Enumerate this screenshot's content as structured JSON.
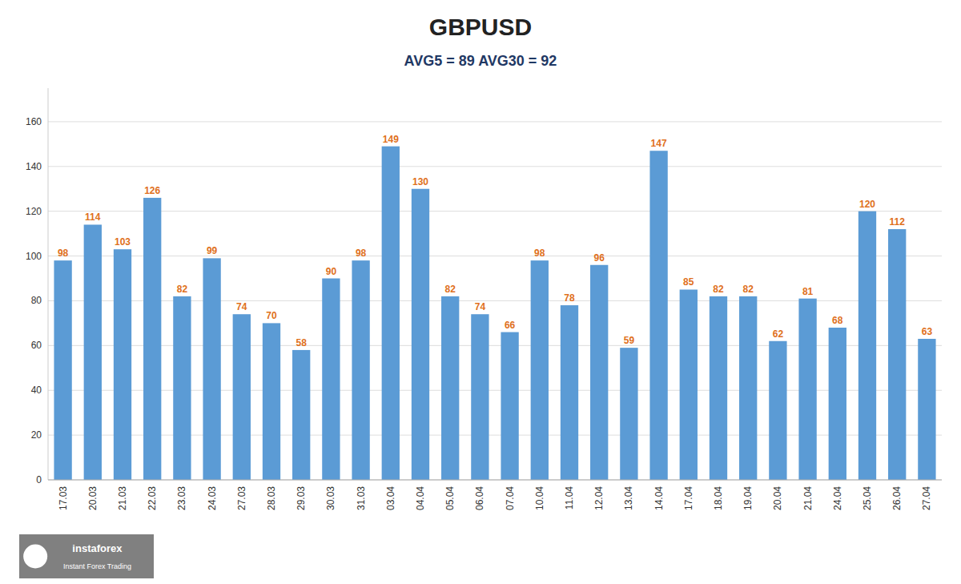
{
  "chart_data": {
    "type": "bar",
    "title": "GBPUSD",
    "subtitle": "AVG5 = 89 AVG30 = 92",
    "categories": [
      "17.03",
      "20.03",
      "21.03",
      "22.03",
      "23.03",
      "24.03",
      "27.03",
      "28.03",
      "29.03",
      "30.03",
      "31.03",
      "03.04",
      "04.04",
      "05.04",
      "06.04",
      "07.04",
      "10.04",
      "11.04",
      "12.04",
      "13.04",
      "14.04",
      "17.04",
      "18.04",
      "19.04",
      "20.04",
      "21.04",
      "24.04",
      "25.04",
      "26.04",
      "27.04"
    ],
    "values": [
      98,
      114,
      103,
      126,
      82,
      99,
      74,
      70,
      58,
      90,
      98,
      149,
      130,
      82,
      74,
      66,
      98,
      78,
      96,
      59,
      147,
      85,
      82,
      82,
      62,
      81,
      68,
      120,
      112,
      63
    ],
    "color": "#5b9bd5",
    "ylim": [
      0,
      175
    ],
    "yticks": [
      0,
      20,
      40,
      60,
      80,
      100,
      120,
      140,
      160
    ],
    "grid": true,
    "data_labels": true,
    "annotations": [
      "instaforex",
      "Instant Forex Trading"
    ]
  }
}
